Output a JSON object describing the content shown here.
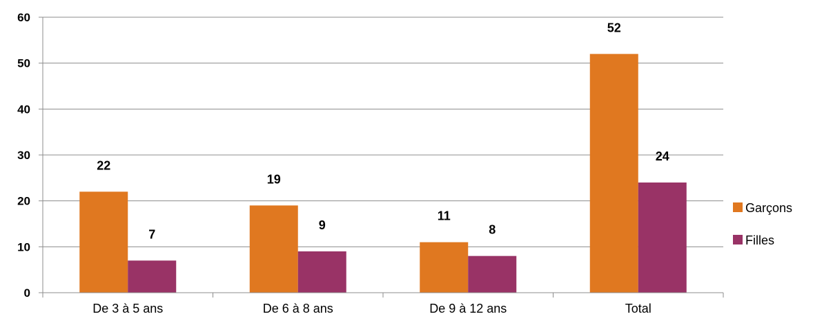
{
  "chart_data": {
    "type": "bar",
    "categories": [
      "De 3 à 5 ans",
      "De 6 à 8 ans",
      "De 9 à 12 ans",
      "Total"
    ],
    "series": [
      {
        "name": "Garçons",
        "values": [
          22,
          19,
          11,
          52
        ],
        "color": "#E07820"
      },
      {
        "name": "Filles",
        "values": [
          7,
          9,
          8,
          24
        ],
        "color": "#993366"
      }
    ],
    "ylim": [
      0,
      60
    ],
    "yticks": [
      0,
      10,
      20,
      30,
      40,
      50,
      60
    ],
    "grid": true,
    "legend_position": "right",
    "data_labels": true
  }
}
